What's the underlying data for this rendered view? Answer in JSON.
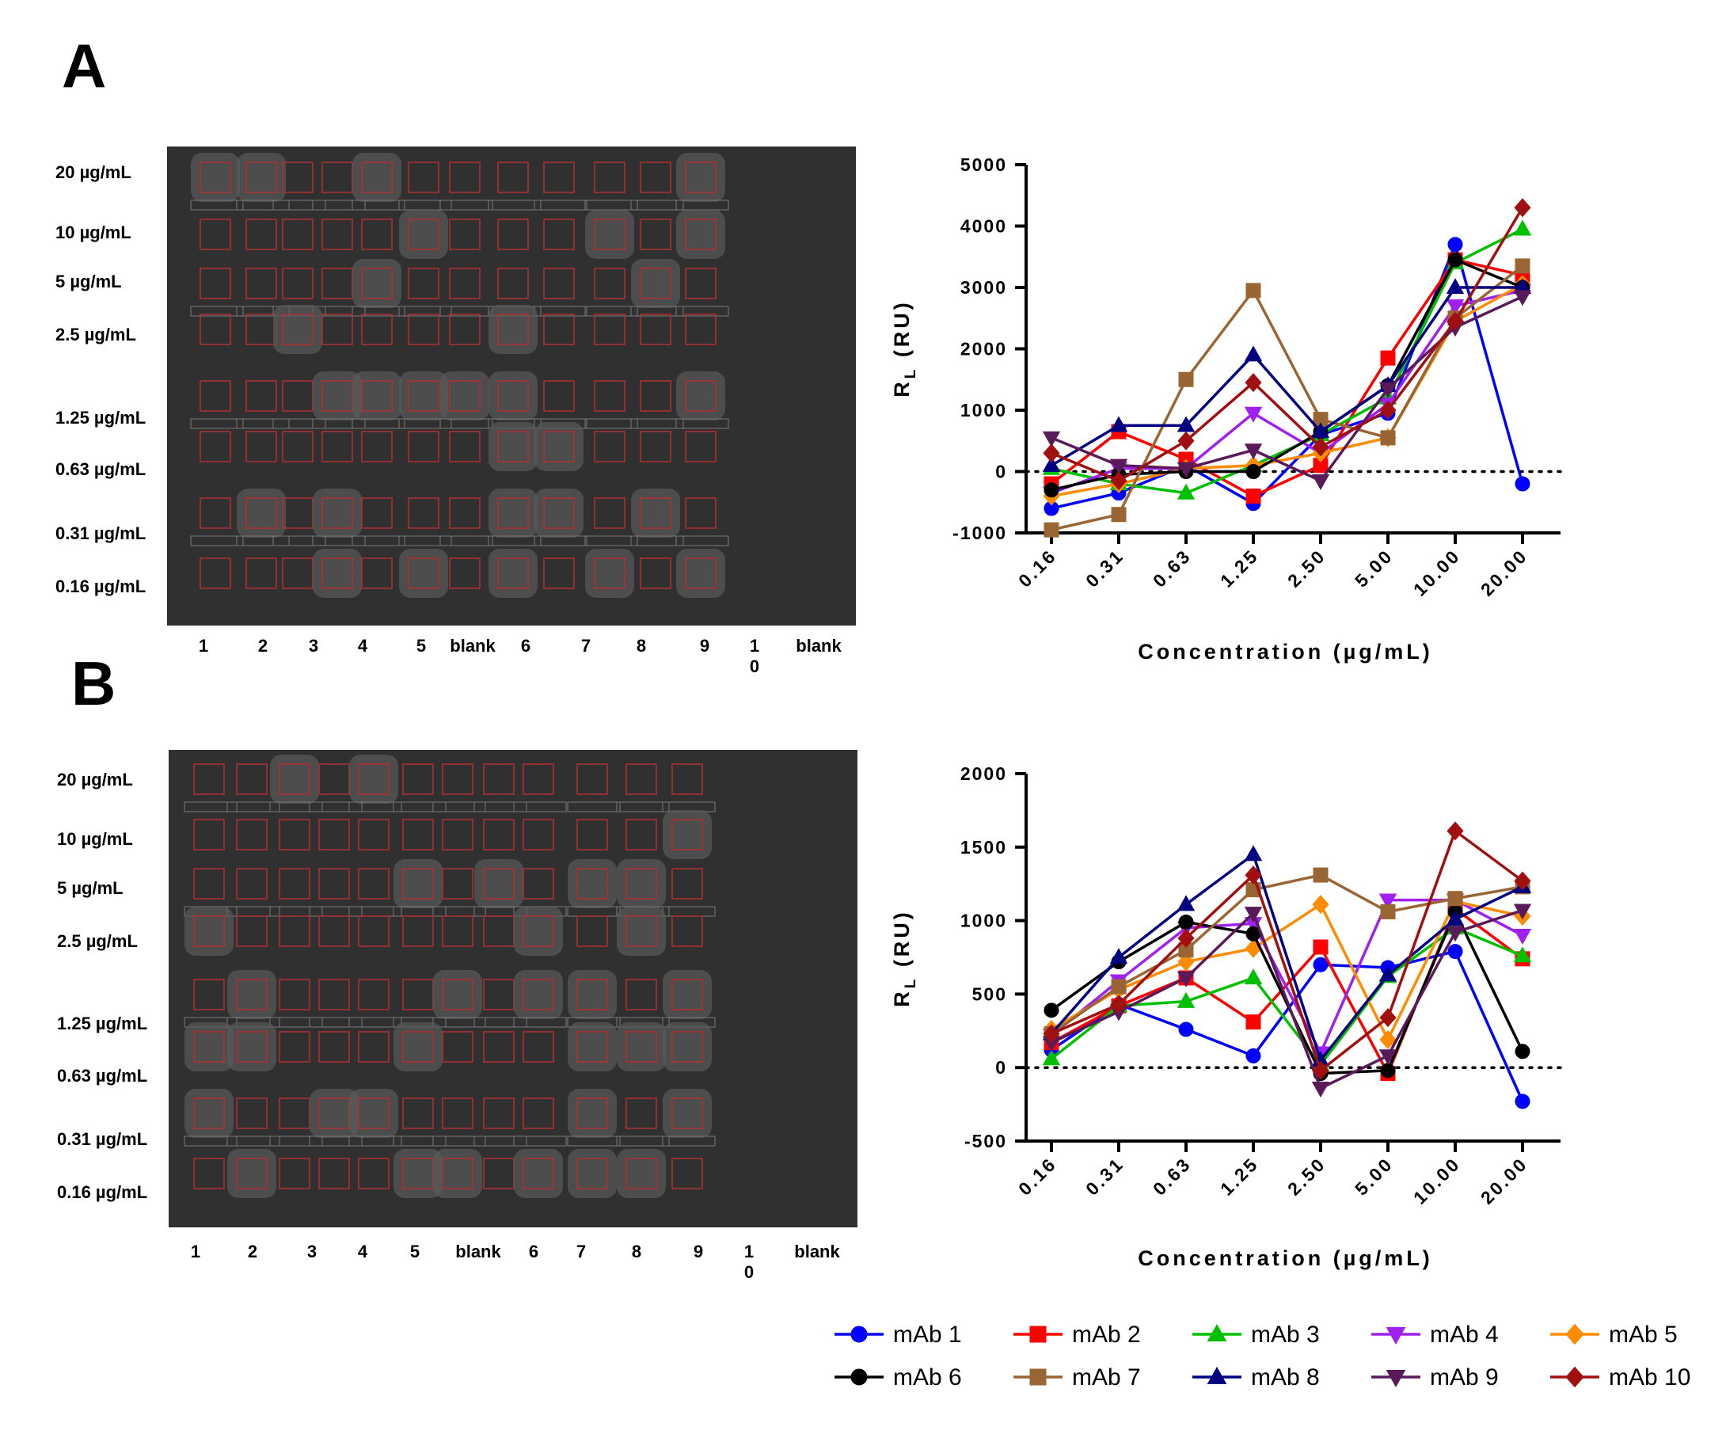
{
  "panels": [
    {
      "letter": "A",
      "row_labels": [
        "20 µg/mL",
        "10 µg/mL",
        "5 µg/mL",
        "2.5 µg/mL",
        "1.25 µg/mL",
        "0.63 µg/mL",
        "0.31 µg/mL",
        "0.16 µg/mL"
      ],
      "col_labels": [
        "1",
        "2",
        "3",
        "4",
        "5",
        "blank",
        "6",
        "7",
        "8",
        "9",
        "1\n0",
        "blank"
      ]
    },
    {
      "letter": "B",
      "row_labels": [
        "20 µg/mL",
        "10 µg/mL",
        "5 µg/mL",
        "2.5 µg/mL",
        "1.25 µg/mL",
        "0.63 µg/mL",
        "0.31 µg/mL",
        "0.16 µg/mL"
      ],
      "col_labels": [
        "1",
        "2",
        "3",
        "4",
        "5",
        "blank",
        "6",
        "7",
        "8",
        "9",
        "1\n0",
        "blank"
      ]
    }
  ],
  "chart_data": [
    {
      "type": "line",
      "categories": [
        "0.16",
        "0.31",
        "0.63",
        "1.25",
        "2.50",
        "5.00",
        "10.00",
        "20.00"
      ],
      "xlabel": "Concentration (µg/mL)",
      "ylabel": "R",
      "ylabel_sub": "L",
      "ylabel_unit": " (RU)",
      "ylim": [
        -1000,
        5000
      ],
      "yticks": [
        -1000,
        0,
        1000,
        2000,
        3000,
        4000,
        5000
      ],
      "zero_line": "dotted",
      "series": [
        {
          "name": "mAb 1",
          "color": "#0000ff",
          "marker": "circle",
          "values": [
            -600,
            -350,
            100,
            -520,
            600,
            950,
            3700,
            -200
          ]
        },
        {
          "name": "mAb 2",
          "color": "#ff0000",
          "marker": "square",
          "values": [
            -200,
            650,
            200,
            -400,
            100,
            1850,
            3450,
            3200
          ]
        },
        {
          "name": "mAb 3",
          "color": "#00c000",
          "marker": "triangle-up",
          "values": [
            50,
            -200,
            -350,
            100,
            600,
            1200,
            3400,
            3950
          ]
        },
        {
          "name": "mAb 4",
          "color": "#a020f0",
          "marker": "triangle-down",
          "values": [
            -350,
            50,
            50,
            950,
            300,
            1100,
            2700,
            2950
          ]
        },
        {
          "name": "mAb 5",
          "color": "#ff8c00",
          "marker": "diamond",
          "values": [
            -400,
            -200,
            50,
            100,
            300,
            550,
            2450,
            3050
          ]
        },
        {
          "name": "mAb 6",
          "color": "#000000",
          "marker": "circle",
          "values": [
            -300,
            -50,
            0,
            0,
            650,
            1400,
            3450,
            3000
          ]
        },
        {
          "name": "mAb 7",
          "color": "#996633",
          "marker": "square",
          "values": [
            -950,
            -700,
            1500,
            2950,
            850,
            550,
            2500,
            3350
          ]
        },
        {
          "name": "mAb 8",
          "color": "#000080",
          "marker": "triangle-up",
          "values": [
            100,
            750,
            750,
            1900,
            650,
            1400,
            3000,
            3000
          ]
        },
        {
          "name": "mAb 9",
          "color": "#5a1a5a",
          "marker": "triangle-down",
          "values": [
            550,
            100,
            50,
            350,
            -150,
            1350,
            2350,
            2850
          ]
        },
        {
          "name": "mAb 10",
          "color": "#a01010",
          "marker": "diamond",
          "values": [
            300,
            -150,
            500,
            1450,
            400,
            1000,
            2450,
            4300
          ]
        }
      ]
    },
    {
      "type": "line",
      "categories": [
        "0.16",
        "0.31",
        "0.63",
        "1.25",
        "2.50",
        "5.00",
        "10.00",
        "20.00"
      ],
      "xlabel": "Concentration (µg/mL)",
      "ylabel": "R",
      "ylabel_sub": "L",
      "ylabel_unit": " (RU)",
      "ylim": [
        -500,
        2000
      ],
      "yticks": [
        -500,
        0,
        500,
        1000,
        1500,
        2000
      ],
      "zero_line": "dotted",
      "series": [
        {
          "name": "mAb 1",
          "color": "#0000ff",
          "marker": "circle",
          "values": [
            120,
            430,
            260,
            80,
            700,
            680,
            790,
            -230
          ]
        },
        {
          "name": "mAb 2",
          "color": "#ff0000",
          "marker": "square",
          "values": [
            170,
            420,
            610,
            310,
            820,
            -40,
            1080,
            740
          ]
        },
        {
          "name": "mAb 3",
          "color": "#00c000",
          "marker": "triangle-up",
          "values": [
            60,
            420,
            450,
            610,
            20,
            620,
            950,
            760
          ]
        },
        {
          "name": "mAb 4",
          "color": "#a020f0",
          "marker": "triangle-down",
          "values": [
            220,
            590,
            950,
            980,
            100,
            1140,
            1140,
            900
          ]
        },
        {
          "name": "mAb 5",
          "color": "#ff8c00",
          "marker": "diamond",
          "values": [
            260,
            530,
            720,
            810,
            1110,
            190,
            1130,
            1030
          ]
        },
        {
          "name": "mAb 6",
          "color": "#000000",
          "marker": "circle",
          "values": [
            390,
            720,
            990,
            910,
            -40,
            -20,
            1060,
            110
          ]
        },
        {
          "name": "mAb 7",
          "color": "#996633",
          "marker": "square",
          "values": [
            230,
            550,
            800,
            1210,
            1310,
            1060,
            1150,
            1230
          ]
        },
        {
          "name": "mAb 8",
          "color": "#000080",
          "marker": "triangle-up",
          "values": [
            230,
            750,
            1110,
            1450,
            50,
            630,
            1010,
            1230
          ]
        },
        {
          "name": "mAb 9",
          "color": "#5a1a5a",
          "marker": "triangle-down",
          "values": [
            170,
            380,
            610,
            1050,
            -140,
            80,
            920,
            1070
          ]
        },
        {
          "name": "mAb 10",
          "color": "#a01010",
          "marker": "diamond",
          "values": [
            230,
            430,
            880,
            1310,
            -20,
            340,
            1610,
            1270
          ]
        }
      ]
    }
  ]
}
